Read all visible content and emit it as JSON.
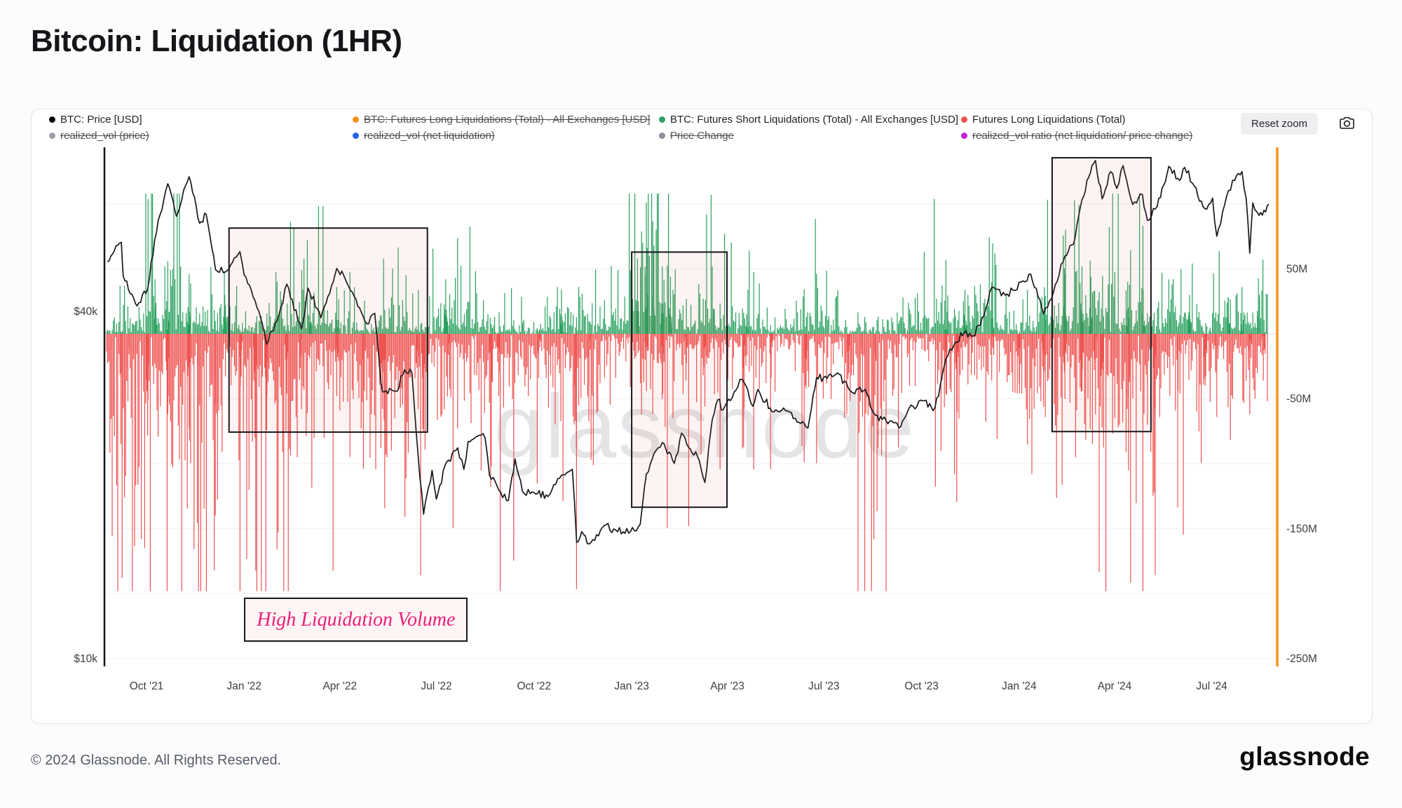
{
  "page": {
    "title": "Bitcoin: Liquidation (1HR)",
    "watermark": "glassnode",
    "footer": {
      "copyright": "© 2024 Glassnode. All Rights Reserved.",
      "brand": "glassnode"
    }
  },
  "toolbar": {
    "reset_zoom_label": "Reset zoom",
    "camera_icon": "camera-icon"
  },
  "legend": {
    "position": "top",
    "rows": [
      [
        {
          "label": "BTC: Price [USD]",
          "color": "#000000",
          "active": true
        },
        {
          "label": "BTC: Futures Long Liquidations (Total) - All Exchanges [USD]",
          "color": "#f7931a",
          "active": false
        },
        {
          "label": "BTC: Futures Short Liquidations (Total) - All Exchanges [USD]",
          "color": "#2aa15f",
          "active": true
        },
        {
          "label": "Futures Long Liquidations (Total)",
          "color": "#ee5351",
          "active": true
        }
      ],
      [
        {
          "label": "realized_vol (price)",
          "color": "#9aa0a6",
          "active": false
        },
        {
          "label": "realized_vol (net liquidation)",
          "color": "#2563eb",
          "active": false
        },
        {
          "label": "Price Change",
          "color": "#8a8f98",
          "active": false
        },
        {
          "label": "realized_vol ratio (net liquidation/ price change)",
          "color": "#c026d3",
          "active": false
        }
      ]
    ]
  },
  "chart_data": {
    "type": "mixed",
    "title": "Bitcoin: Liquidation (1HR)",
    "x_axis": {
      "range": [
        2021.64,
        2024.66
      ],
      "labels": [
        {
          "text": "Oct '21",
          "t": 2021.748
        },
        {
          "text": "Jan '22",
          "t": 2022.0
        },
        {
          "text": "Apr '22",
          "t": 2022.247
        },
        {
          "text": "Jul '22",
          "t": 2022.496
        },
        {
          "text": "Oct '22",
          "t": 2022.748
        },
        {
          "text": "Jan '23",
          "t": 2023.0
        },
        {
          "text": "Apr '23",
          "t": 2023.247
        },
        {
          "text": "Jul '23",
          "t": 2023.496
        },
        {
          "text": "Oct '23",
          "t": 2023.748
        },
        {
          "text": "Jan '24",
          "t": 2024.0
        },
        {
          "text": "Apr '24",
          "t": 2024.246
        },
        {
          "text": "Jul '24",
          "t": 2024.497
        }
      ]
    },
    "y_axis_left": {
      "scale": "log",
      "unit": "USD",
      "range": [
        9000,
        85000
      ],
      "labels": [
        {
          "text": "$40k",
          "value": 40000
        },
        {
          "text": "$10k",
          "value": 10000
        }
      ]
    },
    "y_axis_right": {
      "scale": "linear",
      "unit": "USD millions",
      "range": [
        -255,
        120
      ],
      "gridline_step": 50,
      "labels": [
        {
          "text": "50M",
          "value": 50
        },
        {
          "text": "-50M",
          "value": -50
        },
        {
          "text": "-150M",
          "value": -150
        },
        {
          "text": "-250M",
          "value": -250
        }
      ]
    },
    "series": [
      {
        "id": "price",
        "name": "BTC: Price [USD]",
        "type": "line",
        "axis": "left",
        "color": "#17181c",
        "points": [
          [
            2021.647,
            48800
          ],
          [
            2021.683,
            52700
          ],
          [
            2021.688,
            46000
          ],
          [
            2021.724,
            40900
          ],
          [
            2021.751,
            43800
          ],
          [
            2021.778,
            57500
          ],
          [
            2021.803,
            66600
          ],
          [
            2021.825,
            58500
          ],
          [
            2021.858,
            68500
          ],
          [
            2021.885,
            56900
          ],
          [
            2021.902,
            59000
          ],
          [
            2021.926,
            47300
          ],
          [
            2021.951,
            46800
          ],
          [
            2021.989,
            50800
          ],
          [
            2022.0,
            46300
          ],
          [
            2022.028,
            41800
          ],
          [
            2022.058,
            35100
          ],
          [
            2022.085,
            38500
          ],
          [
            2022.11,
            44600
          ],
          [
            2022.148,
            37300
          ],
          [
            2022.165,
            43900
          ],
          [
            2022.198,
            39000
          ],
          [
            2022.239,
            47500
          ],
          [
            2022.261,
            45500
          ],
          [
            2022.316,
            38100
          ],
          [
            2022.337,
            39700
          ],
          [
            2022.353,
            30100
          ],
          [
            2022.361,
            29000
          ],
          [
            2022.395,
            29100
          ],
          [
            2022.414,
            31700
          ],
          [
            2022.433,
            31300
          ],
          [
            2022.449,
            22500
          ],
          [
            2022.463,
            17800
          ],
          [
            2022.485,
            21200
          ],
          [
            2022.496,
            18900
          ],
          [
            2022.518,
            21600
          ],
          [
            2022.551,
            23200
          ],
          [
            2022.567,
            21300
          ],
          [
            2022.578,
            23800
          ],
          [
            2022.611,
            24400
          ],
          [
            2022.622,
            24100
          ],
          [
            2022.633,
            20800
          ],
          [
            2022.657,
            19600
          ],
          [
            2022.682,
            18800
          ],
          [
            2022.699,
            22200
          ],
          [
            2022.718,
            19500
          ],
          [
            2022.748,
            19400
          ],
          [
            2022.784,
            19100
          ],
          [
            2022.819,
            20800
          ],
          [
            2022.847,
            21300
          ],
          [
            2022.858,
            15900
          ],
          [
            2022.871,
            16600
          ],
          [
            2022.89,
            15800
          ],
          [
            2022.929,
            17000
          ],
          [
            2022.959,
            16700
          ],
          [
            2022.997,
            16600
          ],
          [
            2023.022,
            17100
          ],
          [
            2023.038,
            20900
          ],
          [
            2023.058,
            22700
          ],
          [
            2023.079,
            23700
          ],
          [
            2023.11,
            21800
          ],
          [
            2023.129,
            24600
          ],
          [
            2023.151,
            23100
          ],
          [
            2023.17,
            22400
          ],
          [
            2023.189,
            20200
          ],
          [
            2023.208,
            26000
          ],
          [
            2023.222,
            28100
          ],
          [
            2023.236,
            27000
          ],
          [
            2023.274,
            29600
          ],
          [
            2023.285,
            30500
          ],
          [
            2023.313,
            27400
          ],
          [
            2023.326,
            29300
          ],
          [
            2023.362,
            26800
          ],
          [
            2023.392,
            27200
          ],
          [
            2023.427,
            25700
          ],
          [
            2023.455,
            25100
          ],
          [
            2023.477,
            30700
          ],
          [
            2023.504,
            30600
          ],
          [
            2023.531,
            31300
          ],
          [
            2023.562,
            29200
          ],
          [
            2023.603,
            29300
          ],
          [
            2023.625,
            26600
          ],
          [
            2023.647,
            26000
          ],
          [
            2023.666,
            25800
          ],
          [
            2023.694,
            25200
          ],
          [
            2023.716,
            27200
          ],
          [
            2023.751,
            28000
          ],
          [
            2023.778,
            26900
          ],
          [
            2023.792,
            28500
          ],
          [
            2023.811,
            33100
          ],
          [
            2023.836,
            35400
          ],
          [
            2023.858,
            36700
          ],
          [
            2023.877,
            36200
          ],
          [
            2023.899,
            37800
          ],
          [
            2023.929,
            44000
          ],
          [
            2023.964,
            42700
          ],
          [
            2023.989,
            43500
          ],
          [
            2024.005,
            45000
          ],
          [
            2024.03,
            46400
          ],
          [
            2024.063,
            39600
          ],
          [
            2024.088,
            43100
          ],
          [
            2024.118,
            49900
          ],
          [
            2024.14,
            52300
          ],
          [
            2024.162,
            62500
          ],
          [
            2024.175,
            67500
          ],
          [
            2024.197,
            73100
          ],
          [
            2024.214,
            62700
          ],
          [
            2024.236,
            69900
          ],
          [
            2024.252,
            65400
          ],
          [
            2024.268,
            71600
          ],
          [
            2024.293,
            61300
          ],
          [
            2024.318,
            63800
          ],
          [
            2024.331,
            57500
          ],
          [
            2024.356,
            60800
          ],
          [
            2024.373,
            66200
          ],
          [
            2024.386,
            71400
          ],
          [
            2024.414,
            67500
          ],
          [
            2024.427,
            71100
          ],
          [
            2024.452,
            66000
          ],
          [
            2024.479,
            60300
          ],
          [
            2024.499,
            62900
          ],
          [
            2024.51,
            54000
          ],
          [
            2024.54,
            64800
          ],
          [
            2024.556,
            67500
          ],
          [
            2024.575,
            69900
          ],
          [
            2024.586,
            62700
          ],
          [
            2024.595,
            50500
          ],
          [
            2024.603,
            61700
          ],
          [
            2024.619,
            58700
          ],
          [
            2024.636,
            59500
          ],
          [
            2024.644,
            61400
          ]
        ]
      },
      {
        "id": "short_liq",
        "name": "BTC: Futures Short Liquidations (Total) - All Exchanges [USD]",
        "type": "bar",
        "direction": "up",
        "axis": "right",
        "color": "#2aa15f",
        "unit": "USD millions",
        "baseline_noise_range_m": [
          0,
          30
        ],
        "major_spikes": [
          [
            2021.77,
            42
          ],
          [
            2021.803,
            56
          ],
          [
            2021.858,
            46
          ],
          [
            2021.95,
            30
          ],
          [
            2022.085,
            40
          ],
          [
            2022.17,
            30
          ],
          [
            2022.239,
            36
          ],
          [
            2022.38,
            28
          ],
          [
            2022.52,
            42
          ],
          [
            2022.6,
            30
          ],
          [
            2022.819,
            34
          ],
          [
            2022.93,
            26
          ],
          [
            2023.015,
            58
          ],
          [
            2023.038,
            101
          ],
          [
            2023.055,
            64
          ],
          [
            2023.079,
            52
          ],
          [
            2023.1,
            44
          ],
          [
            2023.208,
            52
          ],
          [
            2023.3,
            34
          ],
          [
            2023.477,
            46
          ],
          [
            2023.7,
            28
          ],
          [
            2023.811,
            57
          ],
          [
            2023.86,
            34
          ],
          [
            2023.929,
            40
          ],
          [
            2024.065,
            36
          ],
          [
            2024.118,
            46
          ],
          [
            2024.162,
            52
          ],
          [
            2024.185,
            44
          ],
          [
            2024.23,
            38
          ],
          [
            2024.28,
            40
          ],
          [
            2024.32,
            34
          ],
          [
            2024.386,
            42
          ],
          [
            2024.44,
            30
          ],
          [
            2024.54,
            28
          ],
          [
            2024.575,
            36
          ],
          [
            2024.62,
            30
          ]
        ]
      },
      {
        "id": "long_liq",
        "name": "Futures Long Liquidations (Total)",
        "type": "bar",
        "direction": "down",
        "axis": "right",
        "color": "#ee5351",
        "unit": "USD millions",
        "baseline_noise_range_m": [
          0,
          38
        ],
        "major_spikes": [
          [
            2021.685,
            -188
          ],
          [
            2021.7,
            -52
          ],
          [
            2021.751,
            -78
          ],
          [
            2021.803,
            -62
          ],
          [
            2021.858,
            -72
          ],
          [
            2021.885,
            -55
          ],
          [
            2021.923,
            -182
          ],
          [
            2021.99,
            -40
          ],
          [
            2022.028,
            -80
          ],
          [
            2022.058,
            -74
          ],
          [
            2022.11,
            -46
          ],
          [
            2022.148,
            -58
          ],
          [
            2022.239,
            -48
          ],
          [
            2022.31,
            -44
          ],
          [
            2022.353,
            -88
          ],
          [
            2022.361,
            -66
          ],
          [
            2022.449,
            -58
          ],
          [
            2022.463,
            -76
          ],
          [
            2022.53,
            -36
          ],
          [
            2022.636,
            -118
          ],
          [
            2022.657,
            -48
          ],
          [
            2022.76,
            -34
          ],
          [
            2022.857,
            -88
          ],
          [
            2022.89,
            -40
          ],
          [
            2023.038,
            -44
          ],
          [
            2023.079,
            -50
          ],
          [
            2023.14,
            -36
          ],
          [
            2023.189,
            -56
          ],
          [
            2023.29,
            -58
          ],
          [
            2023.36,
            -34
          ],
          [
            2023.45,
            -42
          ],
          [
            2023.477,
            -38
          ],
          [
            2023.56,
            -30
          ],
          [
            2023.59,
            -52
          ],
          [
            2023.625,
            -158
          ],
          [
            2023.811,
            -46
          ],
          [
            2023.84,
            -60
          ],
          [
            2023.929,
            -36
          ],
          [
            2024.0,
            -38
          ],
          [
            2024.03,
            -42
          ],
          [
            2024.063,
            -56
          ],
          [
            2024.118,
            -50
          ],
          [
            2024.162,
            -44
          ],
          [
            2024.197,
            -62
          ],
          [
            2024.214,
            -72
          ],
          [
            2024.282,
            -105
          ],
          [
            2024.331,
            -70
          ],
          [
            2024.35,
            -58
          ],
          [
            2024.41,
            -44
          ],
          [
            2024.48,
            -40
          ],
          [
            2024.51,
            -64
          ],
          [
            2024.595,
            -62
          ],
          [
            2024.63,
            -36
          ]
        ]
      }
    ],
    "annotations": {
      "boxes": [
        {
          "label": "high-liquidation-period-1",
          "t_start": 2021.961,
          "t_end": 2022.473,
          "price_top": 55800,
          "price_bottom": 24700
        },
        {
          "label": "high-liquidation-period-2",
          "t_start": 2023.0,
          "t_end": 2023.246,
          "price_top": 50700,
          "price_bottom": 18300
        },
        {
          "label": "high-liquidation-period-3",
          "t_start": 2024.085,
          "t_end": 2024.34,
          "price_top": 73900,
          "price_bottom": 24760
        }
      ],
      "label_box": {
        "text": "High Liquidation Volume",
        "color": "#ed1e79",
        "t_start": 2022.0,
        "t_end": 2022.57,
        "price_top": 12740,
        "price_bottom": 10820
      },
      "right_edge_line": {
        "color": "#f7931a"
      }
    }
  }
}
